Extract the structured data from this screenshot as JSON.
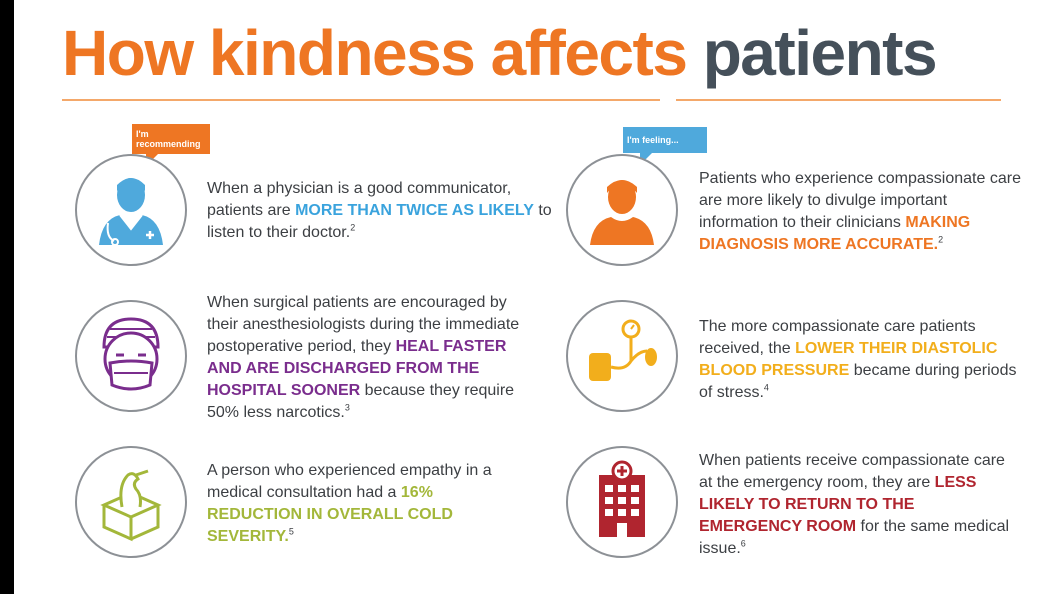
{
  "title": {
    "part1": "How kindness affects",
    "part2": "patients"
  },
  "bubbles": {
    "left": "I'm recommending",
    "right": "I'm feeling..."
  },
  "items": [
    {
      "icon": "doctor-icon",
      "pre": "When a physician is a good communicator, patients are ",
      "highlight": "MORE THAN TWICE AS LIKELY",
      "post": " to listen to their doctor.",
      "ref": "2",
      "color": "#3aa3dd"
    },
    {
      "icon": "surgeon-mask-icon",
      "pre": "When surgical patients are encouraged by their anesthesiologists during the immediate postoperative period, they ",
      "highlight": "HEAL FASTER AND ARE DISCHARGED FROM THE HOSPITAL SOONER",
      "post": " because they require 50% less narcotics.",
      "ref": "3",
      "color": "#7a2d8d"
    },
    {
      "icon": "tissue-box-icon",
      "pre": "A person who experienced empathy in a medical consultation had a ",
      "highlight": "16% REDUCTION IN OVERALL COLD SEVERITY.",
      "post": "",
      "ref": "5",
      "color": "#a3b73a"
    },
    {
      "icon": "patient-icon",
      "pre": "Patients who experience compassionate care are more likely to divulge important information to their clinicians ",
      "highlight": "MAKING DIAGNOSIS MORE ACCURATE.",
      "post": "",
      "ref": "2",
      "color": "#ee7623"
    },
    {
      "icon": "blood-pressure-icon",
      "pre": "The more compassionate care patients received, the ",
      "highlight": "LOWER THEIR DIASTOLIC BLOOD PRESSURE",
      "post": " became during periods of stress.",
      "ref": "4",
      "color": "#f2ae1c"
    },
    {
      "icon": "hospital-icon",
      "pre": "When patients receive compassionate care at the emergency room, they are ",
      "highlight": "LESS LIKELY TO RETURN TO THE EMERGENCY ROOM",
      "post": " for the same medical issue.",
      "ref": "6",
      "color": "#b0252f"
    }
  ]
}
